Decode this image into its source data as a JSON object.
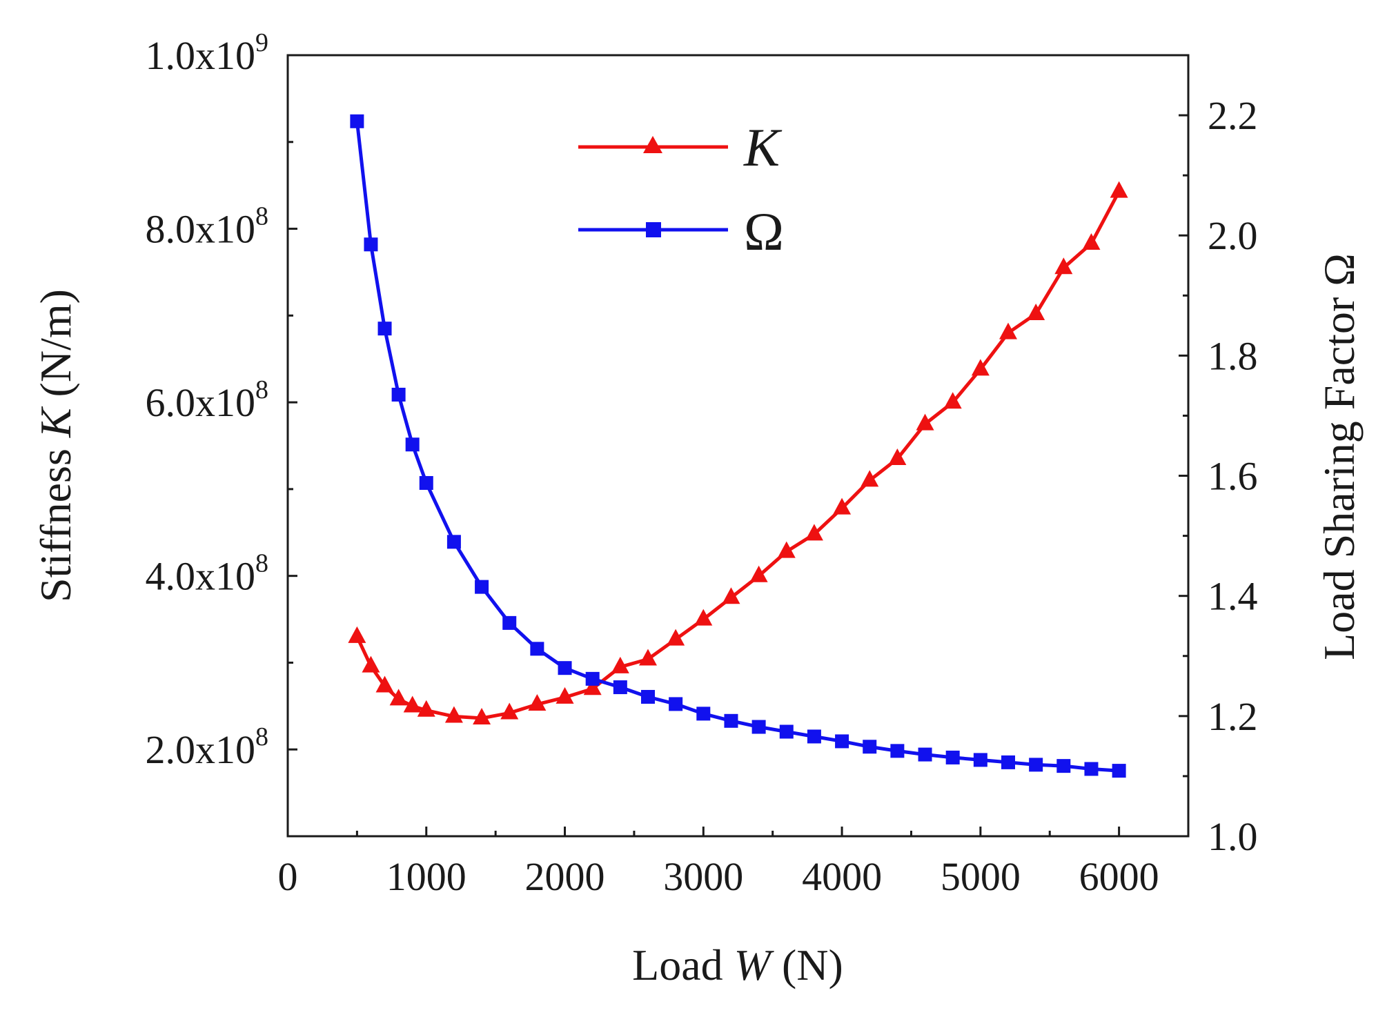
{
  "chart_data": {
    "type": "line",
    "title": "",
    "xlabel": {
      "prefix": "Load ",
      "var": "W",
      "suffix": " (N)"
    },
    "ylabel_left": {
      "prefix": "Stiffness ",
      "var": "K",
      "suffix": " (N/m)"
    },
    "ylabel_right": "Load Sharing Factor Ω",
    "xlim": [
      0,
      6500
    ],
    "ylim_left": [
      100000000,
      1000000000
    ],
    "ylim_right": [
      1.0,
      2.3
    ],
    "x_ticks": [
      {
        "value": 0,
        "label": "0"
      },
      {
        "value": 1000,
        "label": "1000"
      },
      {
        "value": 2000,
        "label": "2000"
      },
      {
        "value": 3000,
        "label": "3000"
      },
      {
        "value": 4000,
        "label": "4000"
      },
      {
        "value": 5000,
        "label": "5000"
      },
      {
        "value": 6000,
        "label": "6000"
      }
    ],
    "y_left_ticks": [
      {
        "value": 200000000,
        "mantissa": "2.0x10",
        "exp": "8"
      },
      {
        "value": 400000000,
        "mantissa": "4.0x10",
        "exp": "8"
      },
      {
        "value": 600000000,
        "mantissa": "6.0x10",
        "exp": "8"
      },
      {
        "value": 800000000,
        "mantissa": "8.0x10",
        "exp": "8"
      },
      {
        "value": 1000000000,
        "mantissa": "1.0x10",
        "exp": "9"
      }
    ],
    "y_right_ticks": [
      {
        "value": 1.0,
        "label": "1.0"
      },
      {
        "value": 1.2,
        "label": "1.2"
      },
      {
        "value": 1.4,
        "label": "1.4"
      },
      {
        "value": 1.6,
        "label": "1.6"
      },
      {
        "value": 1.8,
        "label": "1.8"
      },
      {
        "value": 2.0,
        "label": "2.0"
      },
      {
        "value": 2.2,
        "label": "2.2"
      }
    ],
    "legend": {
      "placement": "top-center"
    },
    "grid": false,
    "series": [
      {
        "name": "K",
        "axis": "left",
        "marker": "triangle",
        "color": "#ee1111",
        "x": [
          500,
          600,
          700,
          800,
          900,
          1000,
          1200,
          1400,
          1600,
          1800,
          2000,
          2200,
          2400,
          2600,
          2800,
          3000,
          3200,
          3400,
          3600,
          3800,
          4000,
          4200,
          4400,
          4600,
          4800,
          5000,
          5200,
          5400,
          5600,
          5800,
          6000
        ],
        "values": [
          330000000,
          296000000,
          273000000,
          258000000,
          250000000,
          245000000,
          238000000,
          236000000,
          242000000,
          252000000,
          260000000,
          270000000,
          295000000,
          304000000,
          327000000,
          350000000,
          375000000,
          400000000,
          428000000,
          448000000,
          478000000,
          510000000,
          535000000,
          575000000,
          600000000,
          638000000,
          680000000,
          702000000,
          755000000,
          783000000,
          843000000
        ]
      },
      {
        "name": "Ω",
        "axis": "right",
        "marker": "square",
        "color": "#1111ee",
        "x": [
          500,
          600,
          700,
          800,
          900,
          1000,
          1200,
          1400,
          1600,
          1800,
          2000,
          2200,
          2400,
          2600,
          2800,
          3000,
          3200,
          3400,
          3600,
          3800,
          4000,
          4200,
          4400,
          4600,
          4800,
          5000,
          5200,
          5400,
          5600,
          5800,
          6000
        ],
        "values": [
          2.19,
          1.985,
          1.845,
          1.735,
          1.652,
          1.588,
          1.49,
          1.415,
          1.355,
          1.312,
          1.28,
          1.262,
          1.248,
          1.232,
          1.22,
          1.204,
          1.192,
          1.182,
          1.174,
          1.166,
          1.158,
          1.149,
          1.142,
          1.136,
          1.131,
          1.127,
          1.123,
          1.119,
          1.117,
          1.112,
          1.109
        ]
      }
    ]
  }
}
